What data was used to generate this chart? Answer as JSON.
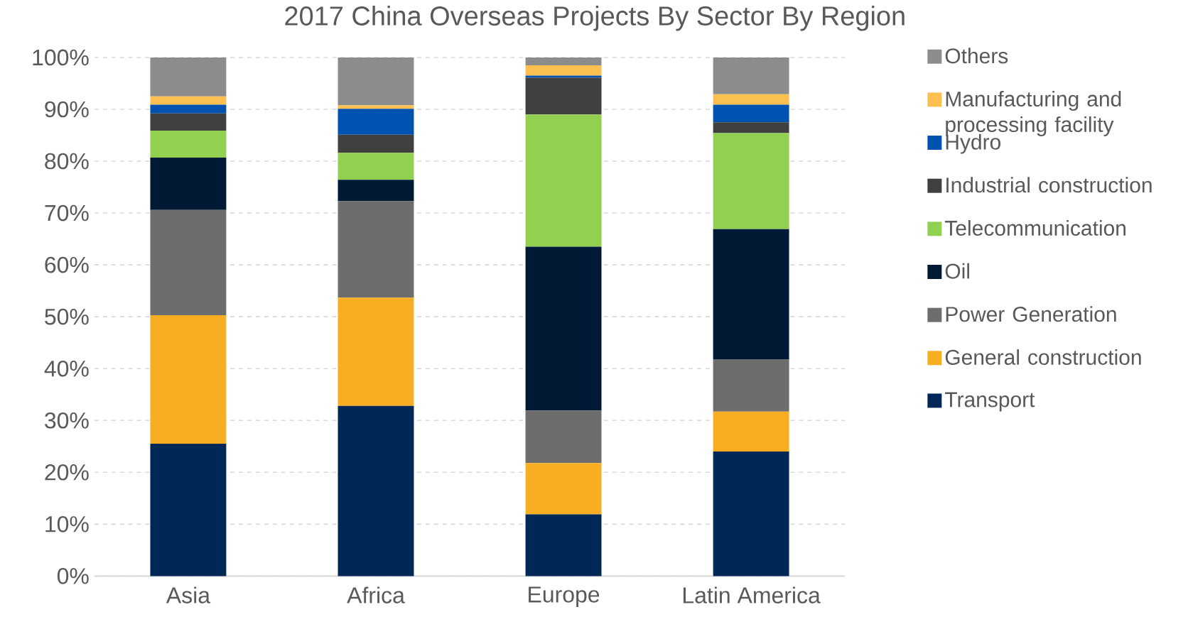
{
  "chart_data": {
    "type": "bar",
    "title": "2017 China Overseas Projects By Sector By Region",
    "stacked": true,
    "categories": [
      "Asia",
      "Africa",
      "Europe",
      "Latin America"
    ],
    "ylim": [
      0,
      100
    ],
    "yticks": [
      {
        "value": 0,
        "label": "0%"
      },
      {
        "value": 10,
        "label": "10%"
      },
      {
        "value": 20,
        "label": "20%"
      },
      {
        "value": 30,
        "label": "30%"
      },
      {
        "value": 40,
        "label": "40%"
      },
      {
        "value": 50,
        "label": "50%"
      },
      {
        "value": 60,
        "label": "60%"
      },
      {
        "value": 70,
        "label": "70%"
      },
      {
        "value": 80,
        "label": "80%"
      },
      {
        "value": 90,
        "label": "90%"
      },
      {
        "value": 100,
        "label": "100%"
      }
    ],
    "grid": "y",
    "legend": "right",
    "series": [
      {
        "name": "Transport",
        "color": "#002856",
        "values": [
          25.5,
          32.8,
          11.9,
          24.0
        ]
      },
      {
        "name": "General construction",
        "color": "#f7ae22",
        "values": [
          24.8,
          20.9,
          9.9,
          7.7
        ]
      },
      {
        "name": "Power Generation",
        "color": "#6d6d6d",
        "values": [
          20.3,
          18.6,
          10.1,
          10.1
        ]
      },
      {
        "name": "Oil",
        "color": "#001a36",
        "values": [
          10.1,
          4.1,
          31.6,
          25.1
        ]
      },
      {
        "name": "Telecommunication",
        "color": "#92d050",
        "values": [
          5.2,
          5.2,
          25.5,
          18.5
        ]
      },
      {
        "name": "Industrial construction",
        "color": "#404040",
        "values": [
          3.3,
          3.5,
          7.1,
          2.1
        ]
      },
      {
        "name": "Hydro",
        "color": "#0052b0",
        "values": [
          1.7,
          5.0,
          0.4,
          3.4
        ]
      },
      {
        "name": "Manufacturing and processing facility",
        "color": "#fbc04f",
        "values": [
          1.6,
          0.7,
          2.0,
          2.0
        ]
      },
      {
        "name": "Others",
        "color": "#8c8c8c",
        "values": [
          7.5,
          9.2,
          1.5,
          7.1
        ]
      }
    ]
  }
}
